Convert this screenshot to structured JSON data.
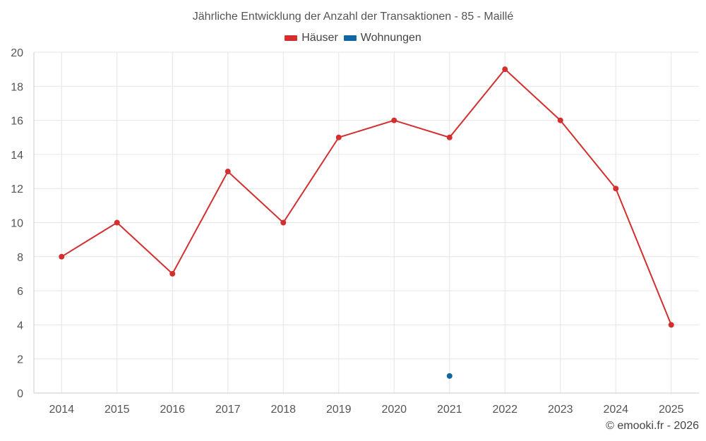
{
  "colors": {
    "houses": "#d32f2f",
    "apartments": "#1565a0",
    "grid": "#e6e6e6",
    "axis": "#cccccc"
  },
  "chart_data": {
    "type": "line",
    "title": "Jährliche Entwicklung der Anzahl der Transaktionen - 85 - Maillé",
    "xlabel": "",
    "ylabel": "",
    "categories": [
      "2014",
      "2015",
      "2016",
      "2017",
      "2018",
      "2019",
      "2020",
      "2021",
      "2022",
      "2023",
      "2024",
      "2025"
    ],
    "ylim": [
      0,
      20
    ],
    "yticks": [
      0,
      2,
      4,
      6,
      8,
      10,
      12,
      14,
      16,
      18,
      20
    ],
    "grid": true,
    "legend_position": "top-center",
    "series": [
      {
        "name": "Häuser",
        "color": "#d32f2f",
        "values": [
          8,
          10,
          7,
          13,
          10,
          15,
          16,
          15,
          19,
          16,
          12,
          4
        ]
      },
      {
        "name": "Wohnungen",
        "color": "#1565a0",
        "values": [
          null,
          null,
          null,
          null,
          null,
          null,
          null,
          1,
          null,
          null,
          null,
          null
        ]
      }
    ]
  },
  "credit": "© emooki.fr - 2026"
}
